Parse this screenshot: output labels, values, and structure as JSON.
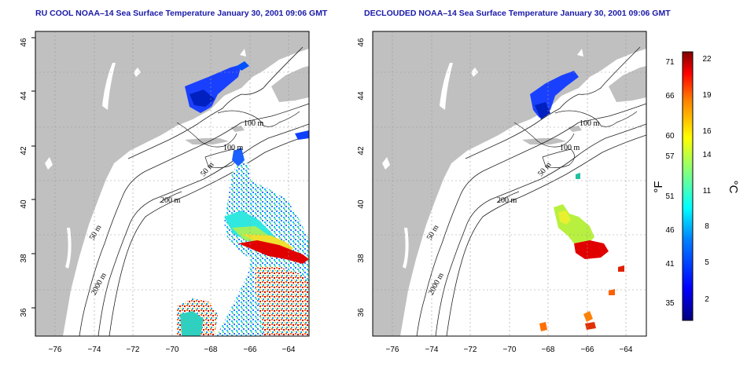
{
  "panels": [
    {
      "title": "RU COOL NOAA–14 Sea Surface Temperature January 30, 2001 09:06 GMT",
      "contour_labels": [
        "100 m",
        "100 m",
        "50 m",
        "200 m",
        "50 m",
        "2000 m"
      ]
    },
    {
      "title": "DECLOUDED NOAA–14 Sea Surface Temperature January 30, 2001 09:06 GMT",
      "contour_labels": [
        "100 m",
        "100 m",
        "50 m",
        "200 m",
        "50 m",
        "2000 m"
      ]
    }
  ],
  "axes": {
    "lat_ticks": [
      "36",
      "38",
      "40",
      "42",
      "44",
      "46"
    ],
    "lon_ticks": [
      "−76",
      "−74",
      "−72",
      "−70",
      "−68",
      "−66",
      "−64"
    ],
    "lat_range": [
      35,
      46
    ],
    "lon_range": [
      -77,
      -63
    ],
    "grid": "dotted"
  },
  "colorbar": {
    "fahrenheit_label": "°F",
    "celsius_label": "°C",
    "fahrenheit_ticks": [
      "71",
      "66",
      "60",
      "57",
      "51",
      "46",
      "41",
      "35"
    ],
    "celsius_ticks": [
      "22",
      "19",
      "16",
      "14",
      "11",
      "8",
      "5",
      "2"
    ],
    "colors": [
      "#00007f",
      "#0000ff",
      "#0080ff",
      "#00ffff",
      "#80ff80",
      "#ffff00",
      "#ff8000",
      "#ff0000",
      "#7f0000"
    ]
  },
  "colors": {
    "land": "#c0c0c0",
    "title": "#1a1aa8"
  }
}
